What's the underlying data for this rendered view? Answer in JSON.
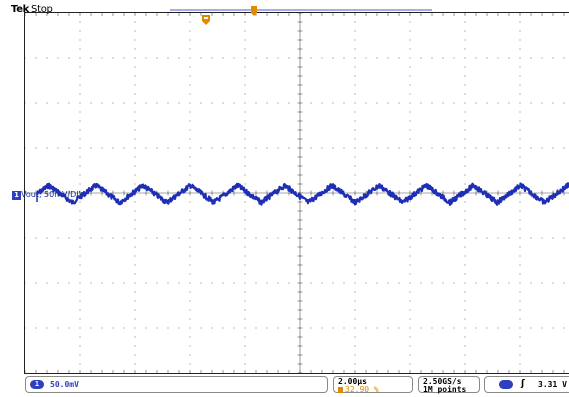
{
  "header": {
    "brand": "Tek",
    "status": "Stop"
  },
  "channel": {
    "number": "1",
    "label": "Vout, 50mV/DIV",
    "color": "#1f2fb5",
    "scale": "50.0mV"
  },
  "horizontal": {
    "time_per_div": "2.00µs",
    "trigger_position": "32.90 %",
    "sample_rate": "2.50GS/s",
    "record_length": "1M points"
  },
  "trigger": {
    "source_channel": "1",
    "slope_icon": "rising-edge-icon",
    "level": "3.31 V"
  },
  "colors": {
    "waveform": "#1f2fb5",
    "trigger_marker": "#e08a00",
    "grid": "#555555",
    "graticule_border": "#222222"
  },
  "chart_data": {
    "type": "line",
    "title": "",
    "xlabel": "",
    "ylabel": "",
    "x_divisions": 10,
    "y_divisions": 8,
    "x_units_per_div": "2.00µs",
    "y_units_per_div": "50mV",
    "waveform": "triangular ripple",
    "ripple_periods_on_screen": 12,
    "ripple_amplitude_divs": 0.38,
    "series": [
      {
        "name": "Vout, 50mV/DIV",
        "color": "#1f2fb5"
      }
    ]
  }
}
